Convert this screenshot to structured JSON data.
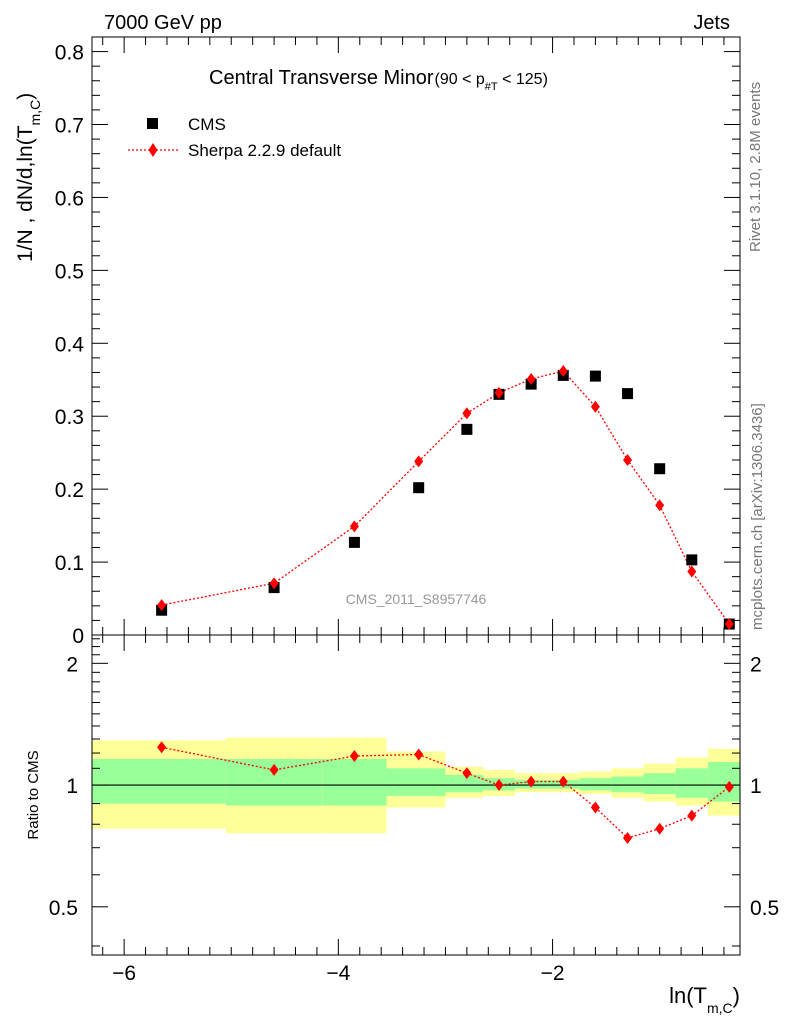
{
  "header": {
    "energy": "7000 GeV pp",
    "category": "Jets",
    "rivet": "Rivet 3.1.10,  2.8M events",
    "mcplots": "mcplots.cern.ch [arXiv:1306.3436]",
    "analysis_id": "CMS_2011_S8957746"
  },
  "chart_data": [
    {
      "type": "scatter",
      "panel": "main",
      "title": "Central Transverse Minor",
      "title_cut": "(90 < p",
      "title_cut_sub": "#T",
      "title_cut_end": " < 125)",
      "ylabel": "1/N , dN/d,ln(T",
      "ylabel_sub": "m,C",
      "ylabel_end": ")",
      "xlim": [
        -6.3,
        -0.25
      ],
      "ylim": [
        0,
        0.82
      ],
      "yticks": [
        0,
        0.1,
        0.2,
        0.3,
        0.4,
        0.5,
        0.6,
        0.7,
        0.8
      ],
      "ytick_labels": [
        "0",
        "0.1",
        "0.2",
        "0.3",
        "0.4",
        "0.5",
        "0.6",
        "0.7",
        "0.8"
      ],
      "legend_position": "top-left",
      "series": [
        {
          "name": "CMS",
          "style": "square-marker",
          "color": "#000000",
          "x": [
            -5.65,
            -4.6,
            -3.85,
            -3.25,
            -2.8,
            -2.5,
            -2.2,
            -1.9,
            -1.6,
            -1.3,
            -1.0,
            -0.7,
            -0.35
          ],
          "y": [
            0.034,
            0.065,
            0.127,
            0.202,
            0.282,
            0.33,
            0.344,
            0.356,
            0.355,
            0.331,
            0.228,
            0.103,
            0.015
          ]
        },
        {
          "name": "Sherpa 2.2.9 default",
          "style": "dotted-line-diamond",
          "color": "#ff0000",
          "x": [
            -5.65,
            -4.6,
            -3.85,
            -3.25,
            -2.8,
            -2.5,
            -2.2,
            -1.9,
            -1.6,
            -1.3,
            -1.0,
            -0.7,
            -0.35
          ],
          "y": [
            0.041,
            0.071,
            0.149,
            0.238,
            0.304,
            0.332,
            0.351,
            0.362,
            0.313,
            0.24,
            0.178,
            0.087,
            0.015
          ]
        }
      ]
    },
    {
      "type": "scatter",
      "panel": "ratio",
      "ylabel": "Ratio to CMS",
      "xlabel": "ln(T",
      "xlabel_sub": "m,C",
      "xlabel_end": ")",
      "xlim": [
        -6.3,
        -0.25
      ],
      "ylim": [
        0.38,
        2.35
      ],
      "y_scale": "log",
      "xticks": [
        -6,
        -4,
        -2
      ],
      "xtick_labels": [
        "−6",
        "−4",
        "−2"
      ],
      "yticks": [
        0.5,
        1,
        2
      ],
      "ytick_labels": [
        "0.5",
        "1",
        "2"
      ],
      "uncertainty_bands": {
        "x_edges": [
          -6.3,
          -5.05,
          -4.15,
          -3.55,
          -3.0,
          -2.65,
          -2.35,
          -2.05,
          -1.75,
          -1.45,
          -1.15,
          -0.85,
          -0.55,
          -0.25
        ],
        "yellow_low": [
          0.78,
          0.76,
          0.76,
          0.88,
          0.93,
          0.94,
          0.96,
          0.96,
          0.95,
          0.93,
          0.91,
          0.89,
          0.84
        ],
        "yellow_high": [
          1.29,
          1.31,
          1.31,
          1.21,
          1.11,
          1.09,
          1.07,
          1.07,
          1.08,
          1.1,
          1.13,
          1.17,
          1.23
        ],
        "green_low": [
          0.9,
          0.89,
          0.89,
          0.94,
          0.96,
          0.97,
          0.98,
          0.98,
          0.97,
          0.96,
          0.95,
          0.93,
          0.91
        ],
        "green_high": [
          1.16,
          1.16,
          1.16,
          1.1,
          1.06,
          1.04,
          1.03,
          1.03,
          1.04,
          1.05,
          1.07,
          1.1,
          1.14
        ],
        "yellow_color": "#ffff99",
        "green_color": "#99ff99"
      },
      "series": [
        {
          "name": "Sherpa 2.2.9 default",
          "style": "dotted-line-diamond",
          "color": "#ff0000",
          "x": [
            -5.65,
            -4.6,
            -3.85,
            -3.25,
            -2.8,
            -2.5,
            -2.2,
            -1.9,
            -1.6,
            -1.3,
            -1.0,
            -0.7,
            -0.35
          ],
          "y": [
            1.24,
            1.09,
            1.18,
            1.19,
            1.07,
            1.0,
            1.02,
            1.02,
            0.88,
            0.74,
            0.78,
            0.84,
            0.99
          ]
        }
      ]
    }
  ]
}
